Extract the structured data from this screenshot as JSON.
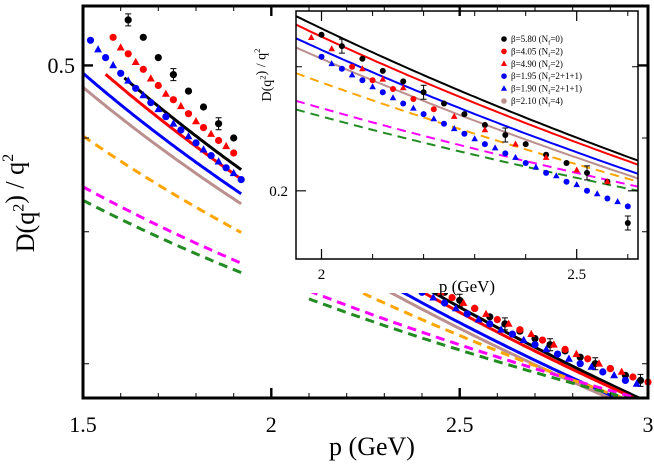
{
  "chart_data": [
    {
      "type": "scatter",
      "panel": "main",
      "xlabel": "p  (GeV)",
      "ylabel": "D(q²) / q²",
      "xlim": [
        1.5,
        3.0
      ],
      "ylim": [
        0.18,
        0.6
      ],
      "yscale": "log",
      "x_ticks": [
        1.5,
        2,
        2.5,
        3
      ],
      "x_tick_labels": [
        "1.5",
        "2",
        "2.5",
        "3"
      ],
      "y_ticks": [
        0.5
      ],
      "y_tick_labels": [
        "0.5"
      ],
      "series": [
        {
          "label": "β=5.80 (N_f=0)",
          "color": "#000000",
          "marker": "circle",
          "low_range": [
            1.62,
            1.92
          ],
          "high_range": [
            2.2,
            3.0
          ],
          "x": [
            1.62,
            1.66,
            1.7,
            1.74,
            1.78,
            1.82,
            1.86,
            1.9,
            2.22,
            2.26,
            2.3,
            2.34,
            2.38,
            2.42,
            2.46,
            2.5,
            2.54,
            2.58,
            2.62,
            2.66,
            2.7,
            2.74,
            2.78,
            2.82,
            2.86,
            2.9,
            2.94,
            2.98
          ],
          "y": [
            0.575,
            0.545,
            0.512,
            0.486,
            0.462,
            0.44,
            0.418,
            0.4,
            0.294,
            0.286,
            0.277,
            0.269,
            0.262,
            0.255,
            0.249,
            0.243,
            0.237,
            0.231,
            0.226,
            0.221,
            0.216,
            0.212,
            0.208,
            0.204,
            0.2,
            0.197,
            0.193,
            0.19
          ]
        },
        {
          "label": "β=4.05 (N_f=2)",
          "color": "#ff0000",
          "marker": "circle",
          "low_range": [
            1.56,
            1.92
          ],
          "high_range": [
            2.2,
            3.0
          ],
          "x": [
            1.58,
            1.62,
            1.66,
            1.7,
            1.74,
            1.78,
            1.82,
            1.86,
            1.9,
            2.24,
            2.3,
            2.36,
            2.42,
            2.48,
            2.54,
            2.6,
            2.66,
            2.72,
            2.78,
            2.84,
            2.9,
            2.96,
            3.0
          ],
          "y": [
            0.545,
            0.518,
            0.494,
            0.47,
            0.45,
            0.431,
            0.413,
            0.397,
            0.382,
            0.284,
            0.273,
            0.263,
            0.254,
            0.245,
            0.237,
            0.229,
            0.222,
            0.215,
            0.209,
            0.203,
            0.197,
            0.192,
            0.189
          ]
        },
        {
          "label": "β=4.90 (N_f=2)",
          "color": "#ff0000",
          "marker": "triangle",
          "low_range": [
            1.56,
            1.92
          ],
          "high_range": [
            2.2,
            3.0
          ],
          "x": [
            1.6,
            1.64,
            1.68,
            1.72,
            1.76,
            1.8,
            1.84,
            1.88,
            2.27,
            2.33,
            2.39,
            2.45,
            2.51,
            2.57,
            2.63,
            2.69,
            2.75,
            2.81,
            2.87,
            2.93
          ],
          "y": [
            0.528,
            0.505,
            0.48,
            0.458,
            0.441,
            0.421,
            0.405,
            0.39,
            0.279,
            0.268,
            0.258,
            0.249,
            0.241,
            0.233,
            0.226,
            0.219,
            0.212,
            0.206,
            0.2,
            0.195
          ]
        },
        {
          "label": "β=1.95 (N_f=2+1+1)",
          "color": "#0000ff",
          "marker": "circle",
          "low_range": [
            1.5,
            1.92
          ],
          "high_range": [
            2.2,
            3.0
          ],
          "x": [
            1.52,
            1.56,
            1.6,
            1.64,
            1.68,
            1.72,
            1.76,
            1.8,
            1.84,
            1.88,
            1.92,
            2.22,
            2.28,
            2.34,
            2.4,
            2.46,
            2.52,
            2.58,
            2.64,
            2.7,
            2.76,
            2.82,
            2.88,
            2.94
          ],
          "y": [
            0.54,
            0.512,
            0.488,
            0.466,
            0.446,
            0.427,
            0.41,
            0.394,
            0.379,
            0.365,
            0.352,
            0.277,
            0.267,
            0.258,
            0.249,
            0.241,
            0.233,
            0.226,
            0.219,
            0.212,
            0.206,
            0.2,
            0.195,
            0.19
          ]
        },
        {
          "label": "β=1.90 (N_f=2+1+1)",
          "color": "#0000ff",
          "marker": "triangle",
          "low_range": [
            1.5,
            1.92
          ],
          "high_range": [
            2.2,
            3.0
          ],
          "x": [
            1.54,
            1.58,
            1.62,
            1.66,
            1.7,
            1.74,
            1.78,
            1.82,
            1.86,
            1.9,
            2.25,
            2.31,
            2.37,
            2.43,
            2.49,
            2.55,
            2.61,
            2.67,
            2.73,
            2.79,
            2.85,
            2.91,
            2.97
          ],
          "y": [
            0.525,
            0.5,
            0.477,
            0.456,
            0.437,
            0.418,
            0.402,
            0.386,
            0.372,
            0.359,
            0.272,
            0.262,
            0.253,
            0.245,
            0.237,
            0.229,
            0.222,
            0.215,
            0.209,
            0.203,
            0.198,
            0.193,
            0.188
          ]
        },
        {
          "label": "β=2.10 (N_f=4)",
          "color": "#bc8f8f",
          "marker": "circle",
          "low_range": [
            1.5,
            1.92
          ],
          "high_range": [
            2.2,
            3.0
          ],
          "x": [],
          "y": []
        }
      ],
      "curves": [
        {
          "color": "#000000",
          "style": "solid",
          "ranges": [
            [
              1.61,
              1.92
            ],
            [
              2.2,
              3.0
            ]
          ],
          "y_at_2": 0.34,
          "power": 1.6
        },
        {
          "color": "#ff0000",
          "style": "solid",
          "ranges": [
            [
              1.56,
              1.92
            ],
            [
              2.2,
              3.0
            ]
          ],
          "y_at_2": 0.331,
          "power": 1.55
        },
        {
          "color": "#0000ff",
          "style": "solid",
          "ranges": [
            [
              1.5,
              1.92
            ],
            [
              2.2,
              3.0
            ]
          ],
          "y_at_2": 0.317,
          "power": 1.5
        },
        {
          "color": "#bc8f8f",
          "style": "solid",
          "ranges": [
            [
              1.5,
              1.92
            ],
            [
              2.2,
              3.0
            ]
          ],
          "y_at_2": 0.308,
          "power": 1.45
        },
        {
          "color": "#ffa500",
          "style": "dashed",
          "ranges": [
            [
              1.5,
              1.92
            ],
            [
              2.1,
              3.0
            ]
          ],
          "y_at_2": 0.285,
          "power": 1.2
        },
        {
          "color": "#ff00ff",
          "style": "dashed",
          "ranges": [
            [
              1.5,
              1.92
            ],
            [
              2.1,
              3.0
            ]
          ],
          "y_at_2": 0.262,
          "power": 0.95
        },
        {
          "color": "#228b22",
          "style": "dashed",
          "ranges": [
            [
              1.5,
              1.92
            ],
            [
              2.1,
              3.0
            ]
          ],
          "y_at_2": 0.255,
          "power": 0.9
        }
      ]
    },
    {
      "type": "scatter",
      "panel": "inset",
      "xlabel": "p  (GeV)",
      "ylabel": "D(q²) / q²",
      "xlim": [
        1.95,
        2.62
      ],
      "ylim": [
        0.16,
        0.36
      ],
      "yscale": "log",
      "x_ticks": [
        2,
        2.5
      ],
      "x_tick_labels": [
        "2",
        "2.5"
      ],
      "y_ticks": [
        0.2
      ],
      "y_tick_labels": [
        "0.2"
      ],
      "legend": {
        "placement": "top-right",
        "entries": [
          {
            "label": "β=5.80 (N",
            "sub": "f",
            "tail": "=0)",
            "color": "#000000",
            "marker": "circle"
          },
          {
            "label": "β=4.05 (N",
            "sub": "f",
            "tail": "=2)",
            "color": "#ff0000",
            "marker": "circle"
          },
          {
            "label": "β=4.90 (N",
            "sub": "f",
            "tail": "=2)",
            "color": "#ff0000",
            "marker": "triangle"
          },
          {
            "label": "β=1.95 (N",
            "sub": "f",
            "tail": "=2+1+1)",
            "color": "#0000ff",
            "marker": "circle"
          },
          {
            "label": "β=1.90 (N",
            "sub": "f",
            "tail": "=2+1+1)",
            "color": "#0000ff",
            "marker": "triangle"
          },
          {
            "label": "β=2.10 (N",
            "sub": "f",
            "tail": "=4)",
            "color": "#bc8f8f",
            "marker": "circle"
          }
        ]
      },
      "series": [
        {
          "color": "#000000",
          "marker": "circle",
          "x": [
            2.0,
            2.04,
            2.08,
            2.12,
            2.16,
            2.2,
            2.24,
            2.28,
            2.32,
            2.36,
            2.4,
            2.44,
            2.48,
            2.52,
            2.56,
            2.6
          ],
          "y": [
            0.333,
            0.321,
            0.308,
            0.296,
            0.286,
            0.276,
            0.266,
            0.257,
            0.248,
            0.24,
            0.233,
            0.225,
            0.219,
            0.212,
            0.206,
            0.18
          ]
        },
        {
          "color": "#ff0000",
          "marker": "circle",
          "x": [
            2.06,
            2.1,
            2.14,
            2.18,
            2.22
          ],
          "y": [
            0.3,
            0.287,
            0.279,
            0.27,
            0.261
          ]
        },
        {
          "color": "#ff0000",
          "marker": "triangle",
          "x": [
            1.98,
            2.02,
            2.08,
            2.12,
            2.16,
            2.26,
            2.32,
            2.38,
            2.44,
            2.5,
            2.56
          ],
          "y": [
            0.33,
            0.318,
            0.298,
            0.288,
            0.28,
            0.255,
            0.244,
            0.233,
            0.223,
            0.214,
            0.206
          ]
        },
        {
          "color": "#0000ff",
          "marker": "circle",
          "x": [
            2.0,
            2.04,
            2.08,
            2.12,
            2.16,
            2.2,
            2.24,
            2.28,
            2.32,
            2.36,
            2.4,
            2.44,
            2.48,
            2.52,
            2.56,
            2.6
          ],
          "y": [
            0.31,
            0.298,
            0.287,
            0.276,
            0.266,
            0.257,
            0.249,
            0.241,
            0.233,
            0.226,
            0.219,
            0.212,
            0.206,
            0.2,
            0.195,
            0.19
          ]
        },
        {
          "color": "#0000ff",
          "marker": "triangle",
          "x": [
            2.02,
            2.06,
            2.1,
            2.14,
            2.18,
            2.22,
            2.26,
            2.3,
            2.34,
            2.38,
            2.42,
            2.46,
            2.5,
            2.54,
            2.58
          ],
          "y": [
            0.303,
            0.292,
            0.281,
            0.271,
            0.262,
            0.253,
            0.245,
            0.237,
            0.23,
            0.223,
            0.216,
            0.21,
            0.204,
            0.198,
            0.193
          ]
        }
      ],
      "curves": [
        {
          "color": "#000000",
          "style": "solid",
          "y_at_2": 0.34,
          "power": 1.6
        },
        {
          "color": "#ff0000",
          "style": "solid",
          "y_at_2": 0.331,
          "power": 1.55
        },
        {
          "color": "#0000ff",
          "style": "solid",
          "y_at_2": 0.317,
          "power": 1.5
        },
        {
          "color": "#bc8f8f",
          "style": "solid",
          "y_at_2": 0.308,
          "power": 1.45
        },
        {
          "color": "#ffa500",
          "style": "dashed",
          "y_at_2": 0.285,
          "power": 1.2
        },
        {
          "color": "#ff00ff",
          "style": "dashed",
          "y_at_2": 0.262,
          "power": 0.95
        },
        {
          "color": "#228b22",
          "style": "dashed",
          "y_at_2": 0.255,
          "power": 0.9
        }
      ]
    }
  ]
}
